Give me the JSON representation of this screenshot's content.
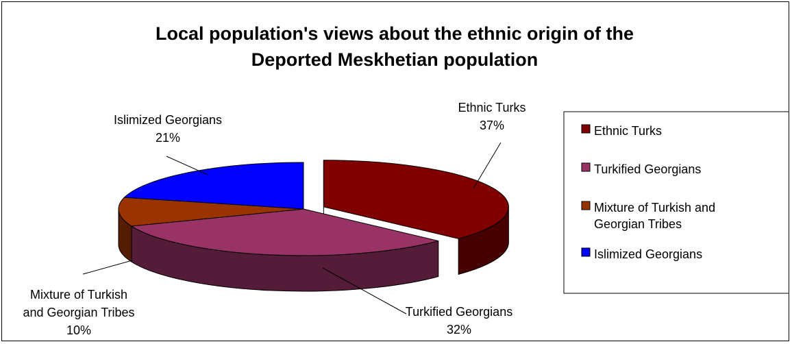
{
  "chart_data": {
    "type": "pie",
    "title_lines": [
      "Local population's views about the ethnic origin of the",
      "Deported Meskhetian population"
    ],
    "slices": [
      {
        "label_lines": [
          "Ethnic Turks"
        ],
        "legend_lines": [
          "Ethnic Turks"
        ],
        "value": 37,
        "pct_label": "37%",
        "color": "#800000",
        "exploded": true
      },
      {
        "label_lines": [
          "Turkified Georgians"
        ],
        "legend_lines": [
          "Turkified Georgians"
        ],
        "value": 32,
        "pct_label": "32%",
        "color": "#993366",
        "exploded": false
      },
      {
        "label_lines": [
          "Mixture of Turkish",
          "and Georgian Tribes"
        ],
        "legend_lines": [
          "Mixture of Turkish and",
          "Georgian Tribes"
        ],
        "value": 10,
        "pct_label": "10%",
        "color": "#993300",
        "exploded": false
      },
      {
        "label_lines": [
          "Islimized Georgians"
        ],
        "legend_lines": [
          "Islimized Georgians"
        ],
        "value": 21,
        "pct_label": "21%",
        "color": "#0000FF",
        "exploded": false
      }
    ],
    "legend_position": "right",
    "style": "3d-pie"
  }
}
